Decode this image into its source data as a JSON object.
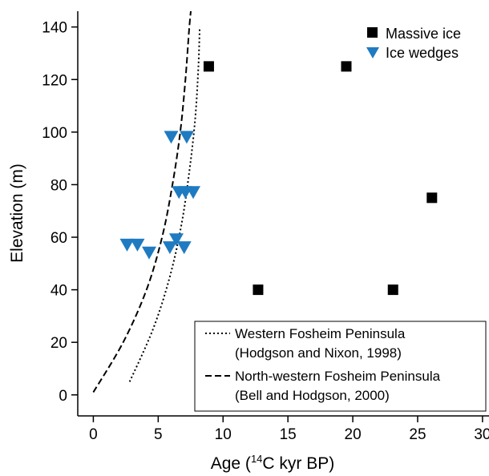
{
  "chart_data": {
    "type": "scatter",
    "xlabel_prefix": "Age (",
    "xlabel_sup": "14",
    "xlabel_suffix": "C kyr BP)",
    "ylabel": "Elevation (m)",
    "xlim": [
      -1.2,
      30.5
    ],
    "ylim": [
      -8,
      146
    ],
    "x_ticks": [
      0,
      5,
      10,
      15,
      20,
      25,
      30
    ],
    "y_ticks": [
      0,
      20,
      40,
      60,
      80,
      100,
      120,
      140
    ],
    "grid": false,
    "series": [
      {
        "name": "Massive ice",
        "marker": "square",
        "color": "#000000",
        "points": [
          {
            "x": 8.9,
            "y": 125
          },
          {
            "x": 19.5,
            "y": 125
          },
          {
            "x": 26.1,
            "y": 75
          },
          {
            "x": 12.7,
            "y": 40
          },
          {
            "x": 23.1,
            "y": 40
          }
        ]
      },
      {
        "name": "Ice wedges",
        "marker": "triangle-down",
        "color": "#1f7bc1",
        "points": [
          {
            "x": 6.0,
            "y": 98
          },
          {
            "x": 7.2,
            "y": 98
          },
          {
            "x": 6.6,
            "y": 77
          },
          {
            "x": 7.1,
            "y": 77
          },
          {
            "x": 7.7,
            "y": 77
          },
          {
            "x": 2.6,
            "y": 57
          },
          {
            "x": 3.4,
            "y": 57
          },
          {
            "x": 4.3,
            "y": 54
          },
          {
            "x": 5.9,
            "y": 56
          },
          {
            "x": 6.4,
            "y": 59
          },
          {
            "x": 7.0,
            "y": 56
          }
        ]
      }
    ],
    "curves": [
      {
        "name": "Western Fosheim Peninsula",
        "citation": "(Hodgson and Nixon, 1998)",
        "style": "dotted",
        "points": [
          [
            2.8,
            5
          ],
          [
            4.6,
            25
          ],
          [
            5.9,
            45
          ],
          [
            6.8,
            65
          ],
          [
            7.4,
            85
          ],
          [
            7.85,
            105
          ],
          [
            8.1,
            125
          ],
          [
            8.2,
            140
          ]
        ]
      },
      {
        "name": "North-western Fosheim Peninsula",
        "citation": "(Bell and Hodgson, 2000)",
        "style": "dashed",
        "points": [
          [
            0.0,
            1
          ],
          [
            2.3,
            20
          ],
          [
            4.1,
            40
          ],
          [
            5.3,
            60
          ],
          [
            6.1,
            80
          ],
          [
            6.7,
            100
          ],
          [
            7.1,
            120
          ],
          [
            7.4,
            140
          ],
          [
            7.6,
            150
          ]
        ]
      }
    ],
    "legend_top": {
      "placement": "top-right",
      "items": [
        {
          "label": "Massive ice"
        },
        {
          "label": "Ice wedges"
        }
      ]
    },
    "legend_bottom": {
      "placement": "bottom-right",
      "items": [
        {
          "label": "Western Fosheim Peninsula",
          "citation": "(Hodgson and Nixon, 1998)"
        },
        {
          "label": "North-western Fosheim Peninsula",
          "citation": "(Bell and Hodgson, 2000)"
        }
      ]
    }
  }
}
